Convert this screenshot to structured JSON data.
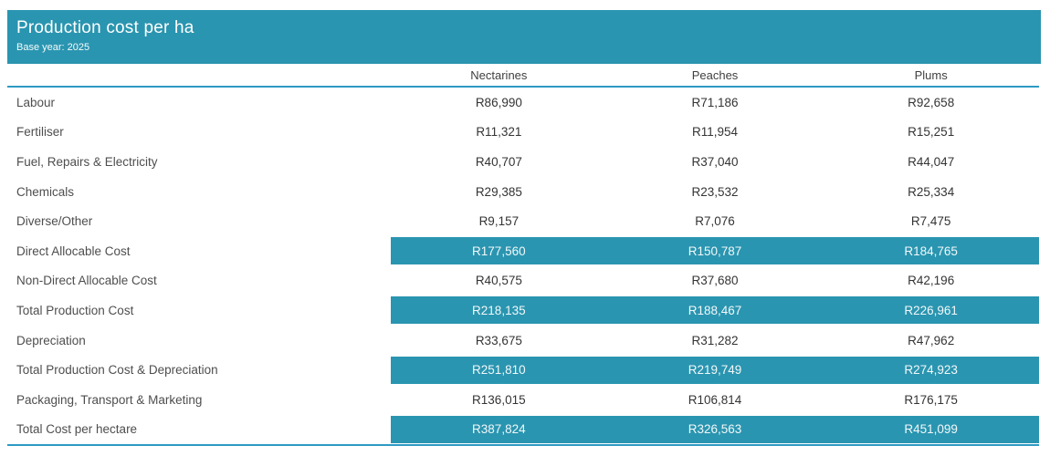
{
  "banner": {
    "title": "Production cost per ha",
    "subtitle": "Base year: 2025"
  },
  "colors": {
    "accent_teal": "#2A95B0",
    "divider_blue": "#2D9BC4",
    "banner_text": "#FFFFFF",
    "highlight_band_text": "#F2F8FA",
    "row_label_text": "#4E4E4E",
    "value_text": "#343434",
    "column_header_text": "#3F3F3F"
  },
  "chart_data": {
    "type": "table",
    "title": "Production cost per ha",
    "subtitle": "Base year: 2025",
    "columns": [
      "Nectarines",
      "Peaches",
      "Plums"
    ],
    "rows": [
      {
        "label": "Labour",
        "values": [
          "R86,990",
          "R71,186",
          "R92,658"
        ],
        "highlight": false
      },
      {
        "label": "Fertiliser",
        "values": [
          "R11,321",
          "R11,954",
          "R15,251"
        ],
        "highlight": false
      },
      {
        "label": "Fuel, Repairs & Electricity",
        "values": [
          "R40,707",
          "R37,040",
          "R44,047"
        ],
        "highlight": false
      },
      {
        "label": "Chemicals",
        "values": [
          "R29,385",
          "R23,532",
          "R25,334"
        ],
        "highlight": false
      },
      {
        "label": "Diverse/Other",
        "values": [
          "R9,157",
          "R7,076",
          "R7,475"
        ],
        "highlight": false
      },
      {
        "label": "Direct Allocable Cost",
        "values": [
          "R177,560",
          "R150,787",
          "R184,765"
        ],
        "highlight": true
      },
      {
        "label": "Non-Direct Allocable Cost",
        "values": [
          "R40,575",
          "R37,680",
          "R42,196"
        ],
        "highlight": false
      },
      {
        "label": "Total Production Cost",
        "values": [
          "R218,135",
          "R188,467",
          "R226,961"
        ],
        "highlight": true
      },
      {
        "label": "Depreciation",
        "values": [
          "R33,675",
          "R31,282",
          "R47,962"
        ],
        "highlight": false
      },
      {
        "label": "Total Production Cost & Depreciation",
        "values": [
          "R251,810",
          "R219,749",
          "R274,923"
        ],
        "highlight": true
      },
      {
        "label": "Packaging, Transport & Marketing",
        "values": [
          "R136,015",
          "R106,814",
          "R176,175"
        ],
        "highlight": false
      },
      {
        "label": "Total Cost per hectare",
        "values": [
          "R387,824",
          "R326,563",
          "R451,099"
        ],
        "highlight": true
      }
    ]
  }
}
